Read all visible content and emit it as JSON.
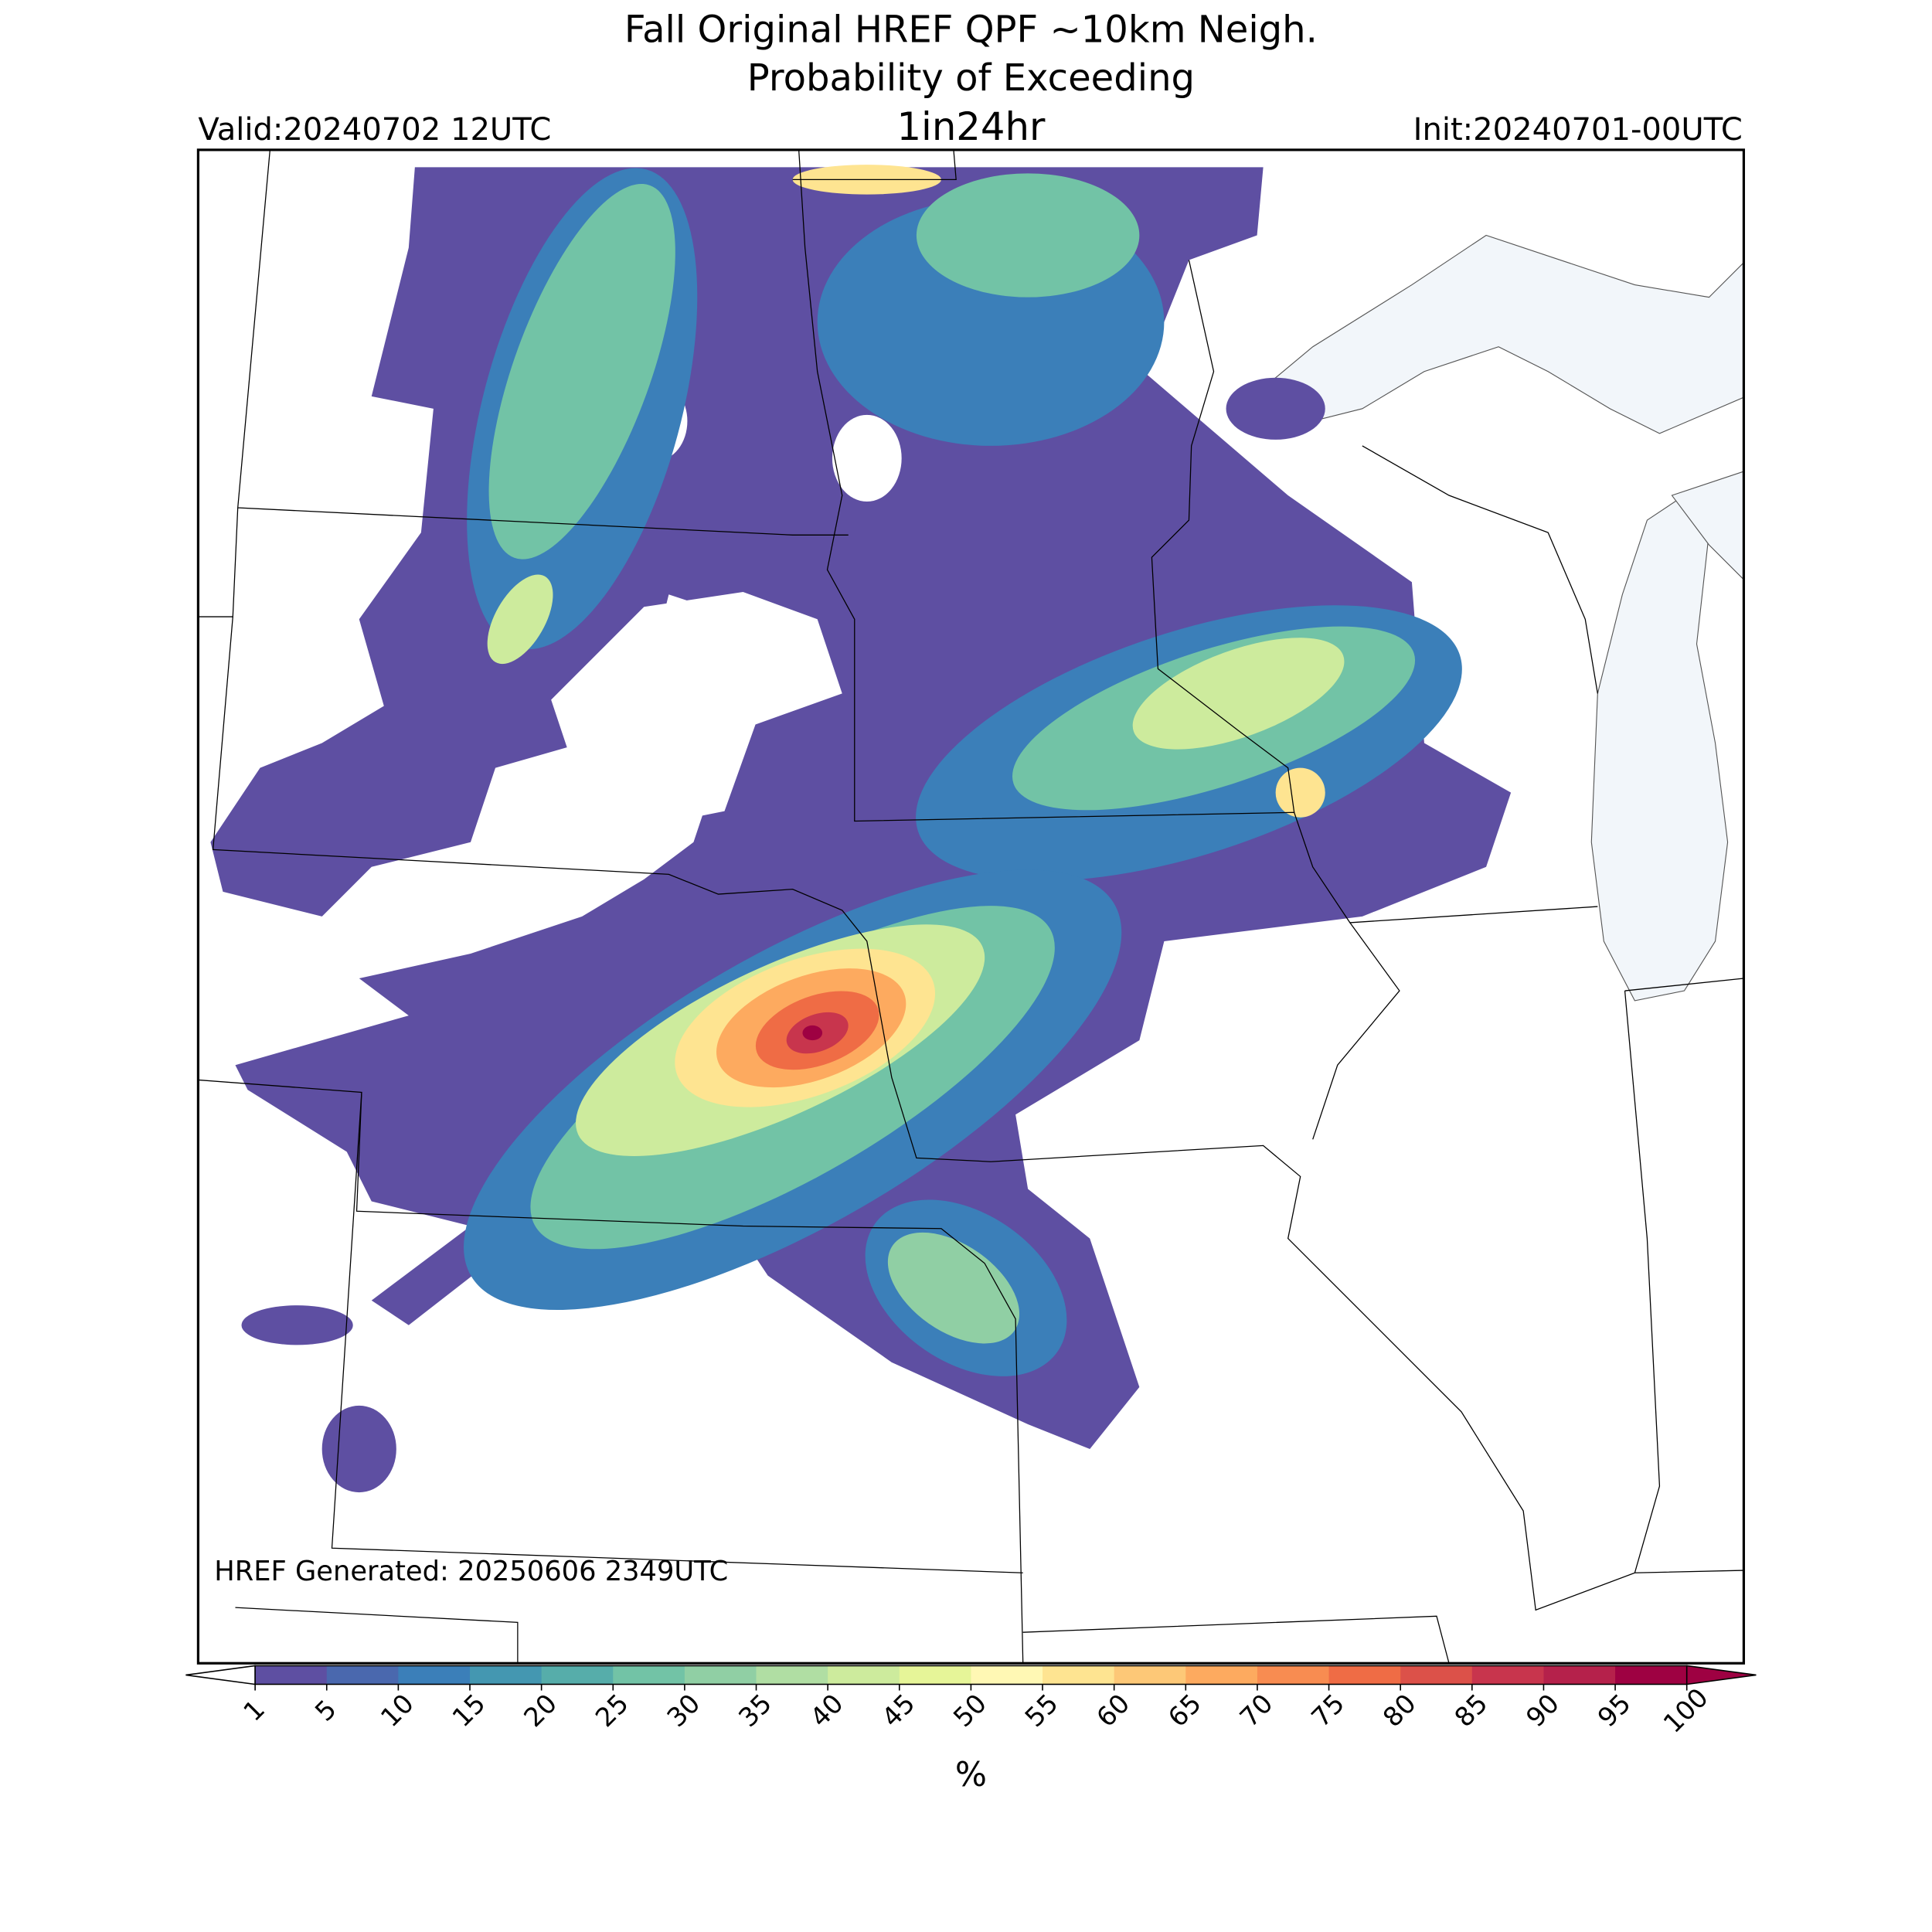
{
  "header": {
    "title": "Fall Original HREF QPF ~10km Neigh.",
    "subtitle": "Probability of Exceeding",
    "threshold": "1in24hr",
    "valid": "Valid:20240702 12UTC",
    "init": "Init:20240701-00UTC"
  },
  "map": {
    "footer": "HREF Generated: 20250606 2349UTC"
  },
  "colorbar": {
    "label": "%",
    "ticks": [
      1,
      5,
      10,
      15,
      20,
      25,
      30,
      35,
      40,
      45,
      50,
      55,
      60,
      65,
      70,
      75,
      80,
      85,
      90,
      95,
      100
    ],
    "colors": [
      "#5e4fa2",
      "#4a68ae",
      "#3b7fb9",
      "#4497b1",
      "#56adaa",
      "#72c3a6",
      "#90cfa4",
      "#b0dea3",
      "#cdeb9d",
      "#e6f598",
      "#fff8b4",
      "#fee491",
      "#fdc877",
      "#fdaa5f",
      "#f88c51",
      "#ef6c45",
      "#dc5149",
      "#c8354d",
      "#b5214b",
      "#9e0142"
    ],
    "under_color": "#ffffff",
    "over_color": "#9e0142"
  }
}
